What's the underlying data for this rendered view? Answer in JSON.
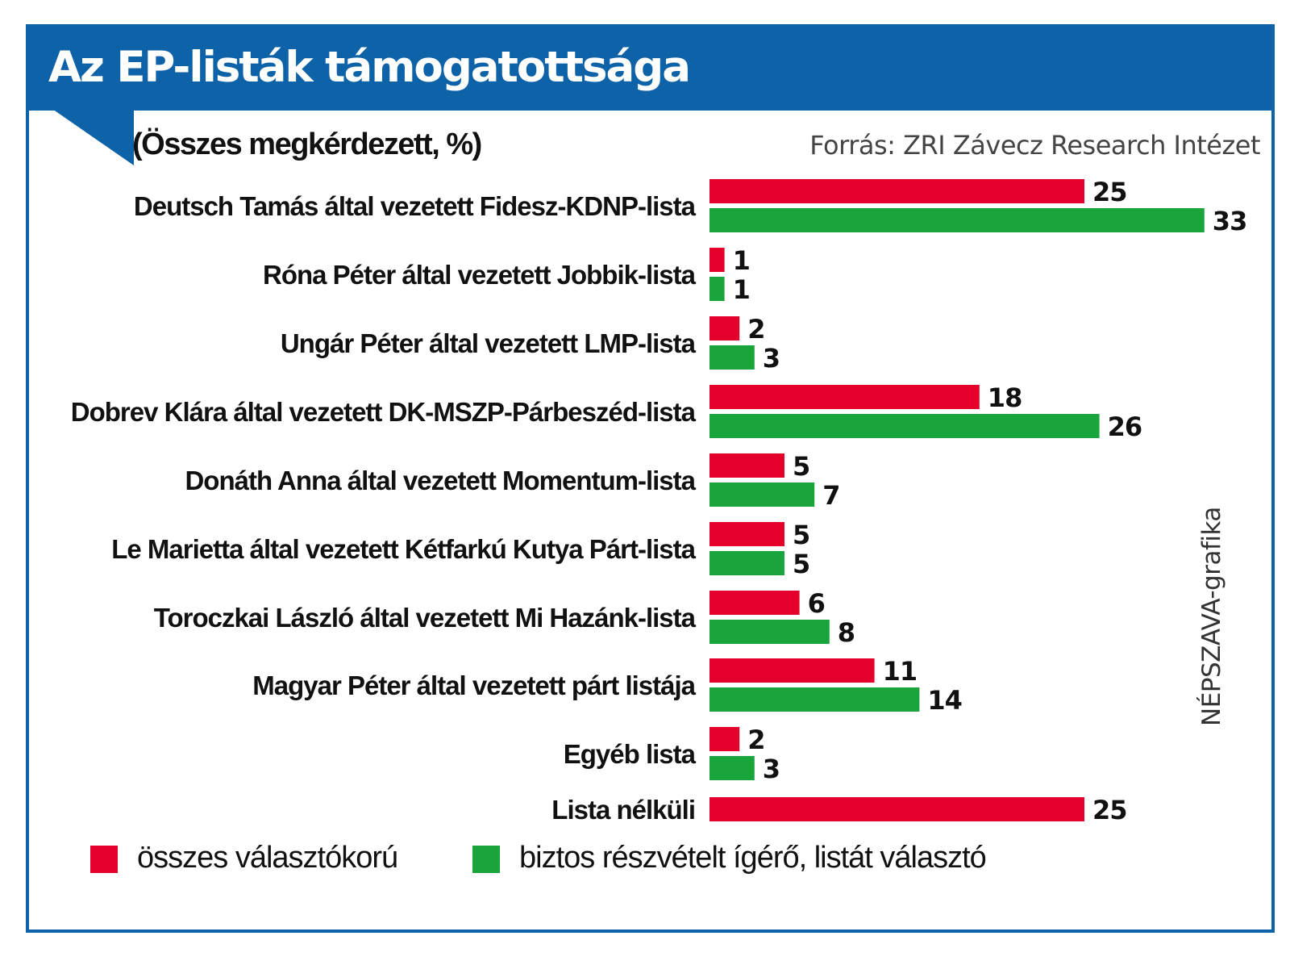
{
  "header": {
    "title": "Az EP-listák támogatottsága",
    "subtitle": "(Összes megkérdezett, %)",
    "source": "Forrás: ZRI Závecz Research Intézet",
    "credit": "NÉPSZAVA-grafika"
  },
  "colors": {
    "brand_blue": "#0d62a8",
    "series_red": "#e4002b",
    "series_green": "#19a53b"
  },
  "legend": [
    {
      "label": "összes választókorú",
      "color": "#e4002b"
    },
    {
      "label": "biztos részvételt ígérő, listát választó",
      "color": "#19a53b"
    }
  ],
  "chart_data": {
    "type": "bar",
    "orientation": "horizontal",
    "categories": [
      "Deutsch Tamás által vezetett Fidesz-KDNP-lista",
      "Róna Péter által vezetett Jobbik-lista",
      "Ungár Péter által vezetett LMP-lista",
      "Dobrev Klára által vezetett DK-MSZP-Párbeszéd-lista",
      "Donáth Anna által vezetett Momentum-lista",
      "Le Marietta által vezetett Kétfarkú Kutya Párt-lista",
      "Toroczkai László által vezetett Mi Hazánk-lista",
      "Magyar Péter által vezetett párt listája",
      "Egyéb lista",
      "Lista nélküli"
    ],
    "series": [
      {
        "name": "összes választókorú",
        "color": "#e4002b",
        "values": [
          25,
          1,
          2,
          18,
          5,
          5,
          6,
          11,
          2,
          25
        ]
      },
      {
        "name": "biztos részvételt ígérő, listát választó",
        "color": "#19a53b",
        "values": [
          33,
          1,
          3,
          26,
          7,
          5,
          8,
          14,
          3,
          null
        ]
      }
    ],
    "xlim": [
      0,
      33
    ],
    "grid": false,
    "legend_position": "bottom"
  }
}
